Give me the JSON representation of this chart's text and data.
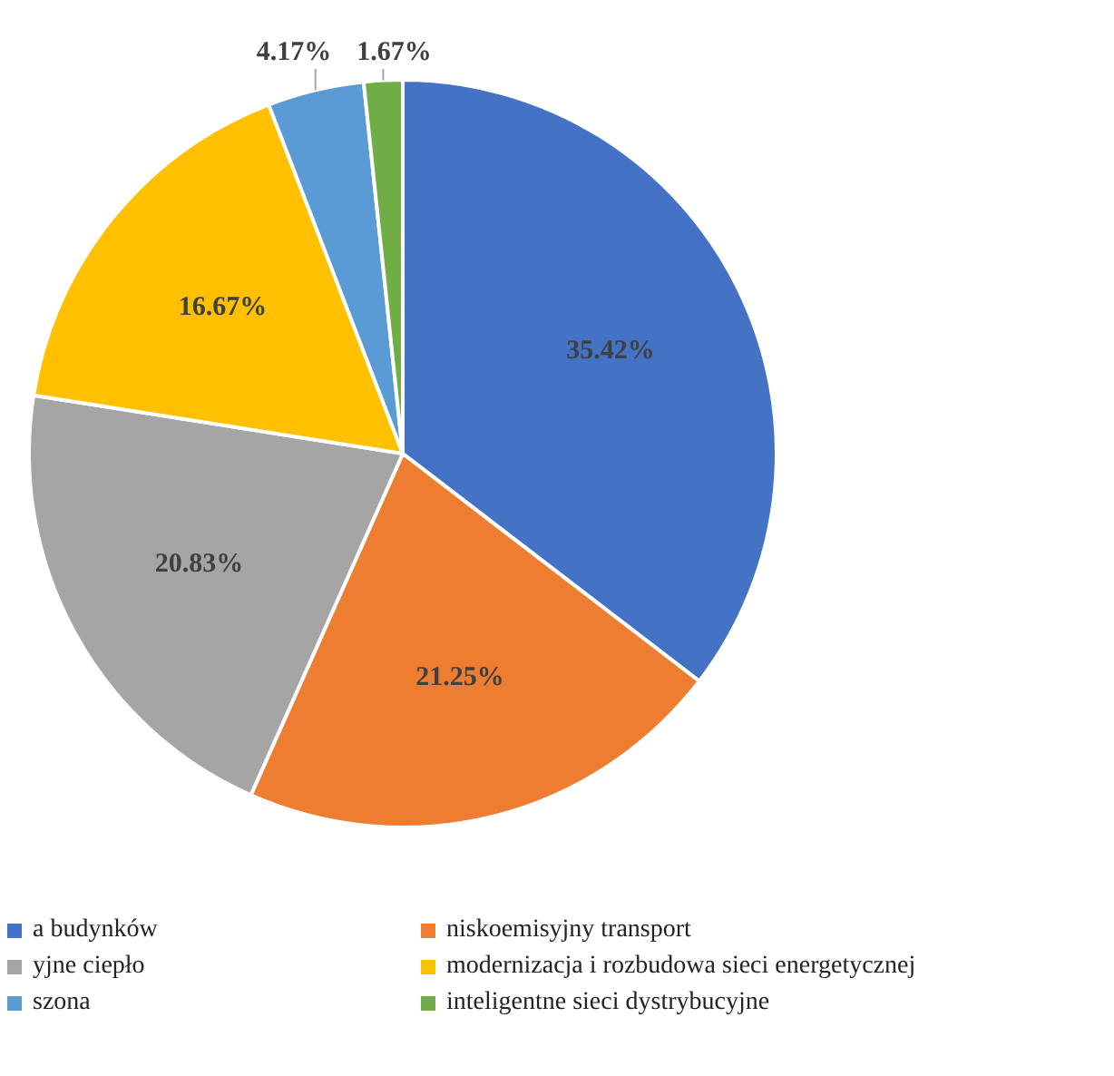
{
  "chart_data": {
    "type": "pie",
    "categories": [
      "a budynków",
      "niskoemisyjny transport",
      "yjne ciepło",
      "modernizacja i rozbudowa sieci energetycznej",
      "szona",
      "inteligentne sieci dystrybucyjne"
    ],
    "values": [
      35.42,
      21.25,
      20.83,
      16.67,
      4.17,
      1.67
    ],
    "value_labels": [
      "35.42%",
      "21.25%",
      "20.83%",
      "16.67%",
      "4.17%",
      "1.67%"
    ],
    "colors": [
      "#4472c4",
      "#ed7d31",
      "#a5a5a5",
      "#ffc000",
      "#5b9bd5",
      "#70ad47"
    ],
    "legend": "bottom"
  }
}
